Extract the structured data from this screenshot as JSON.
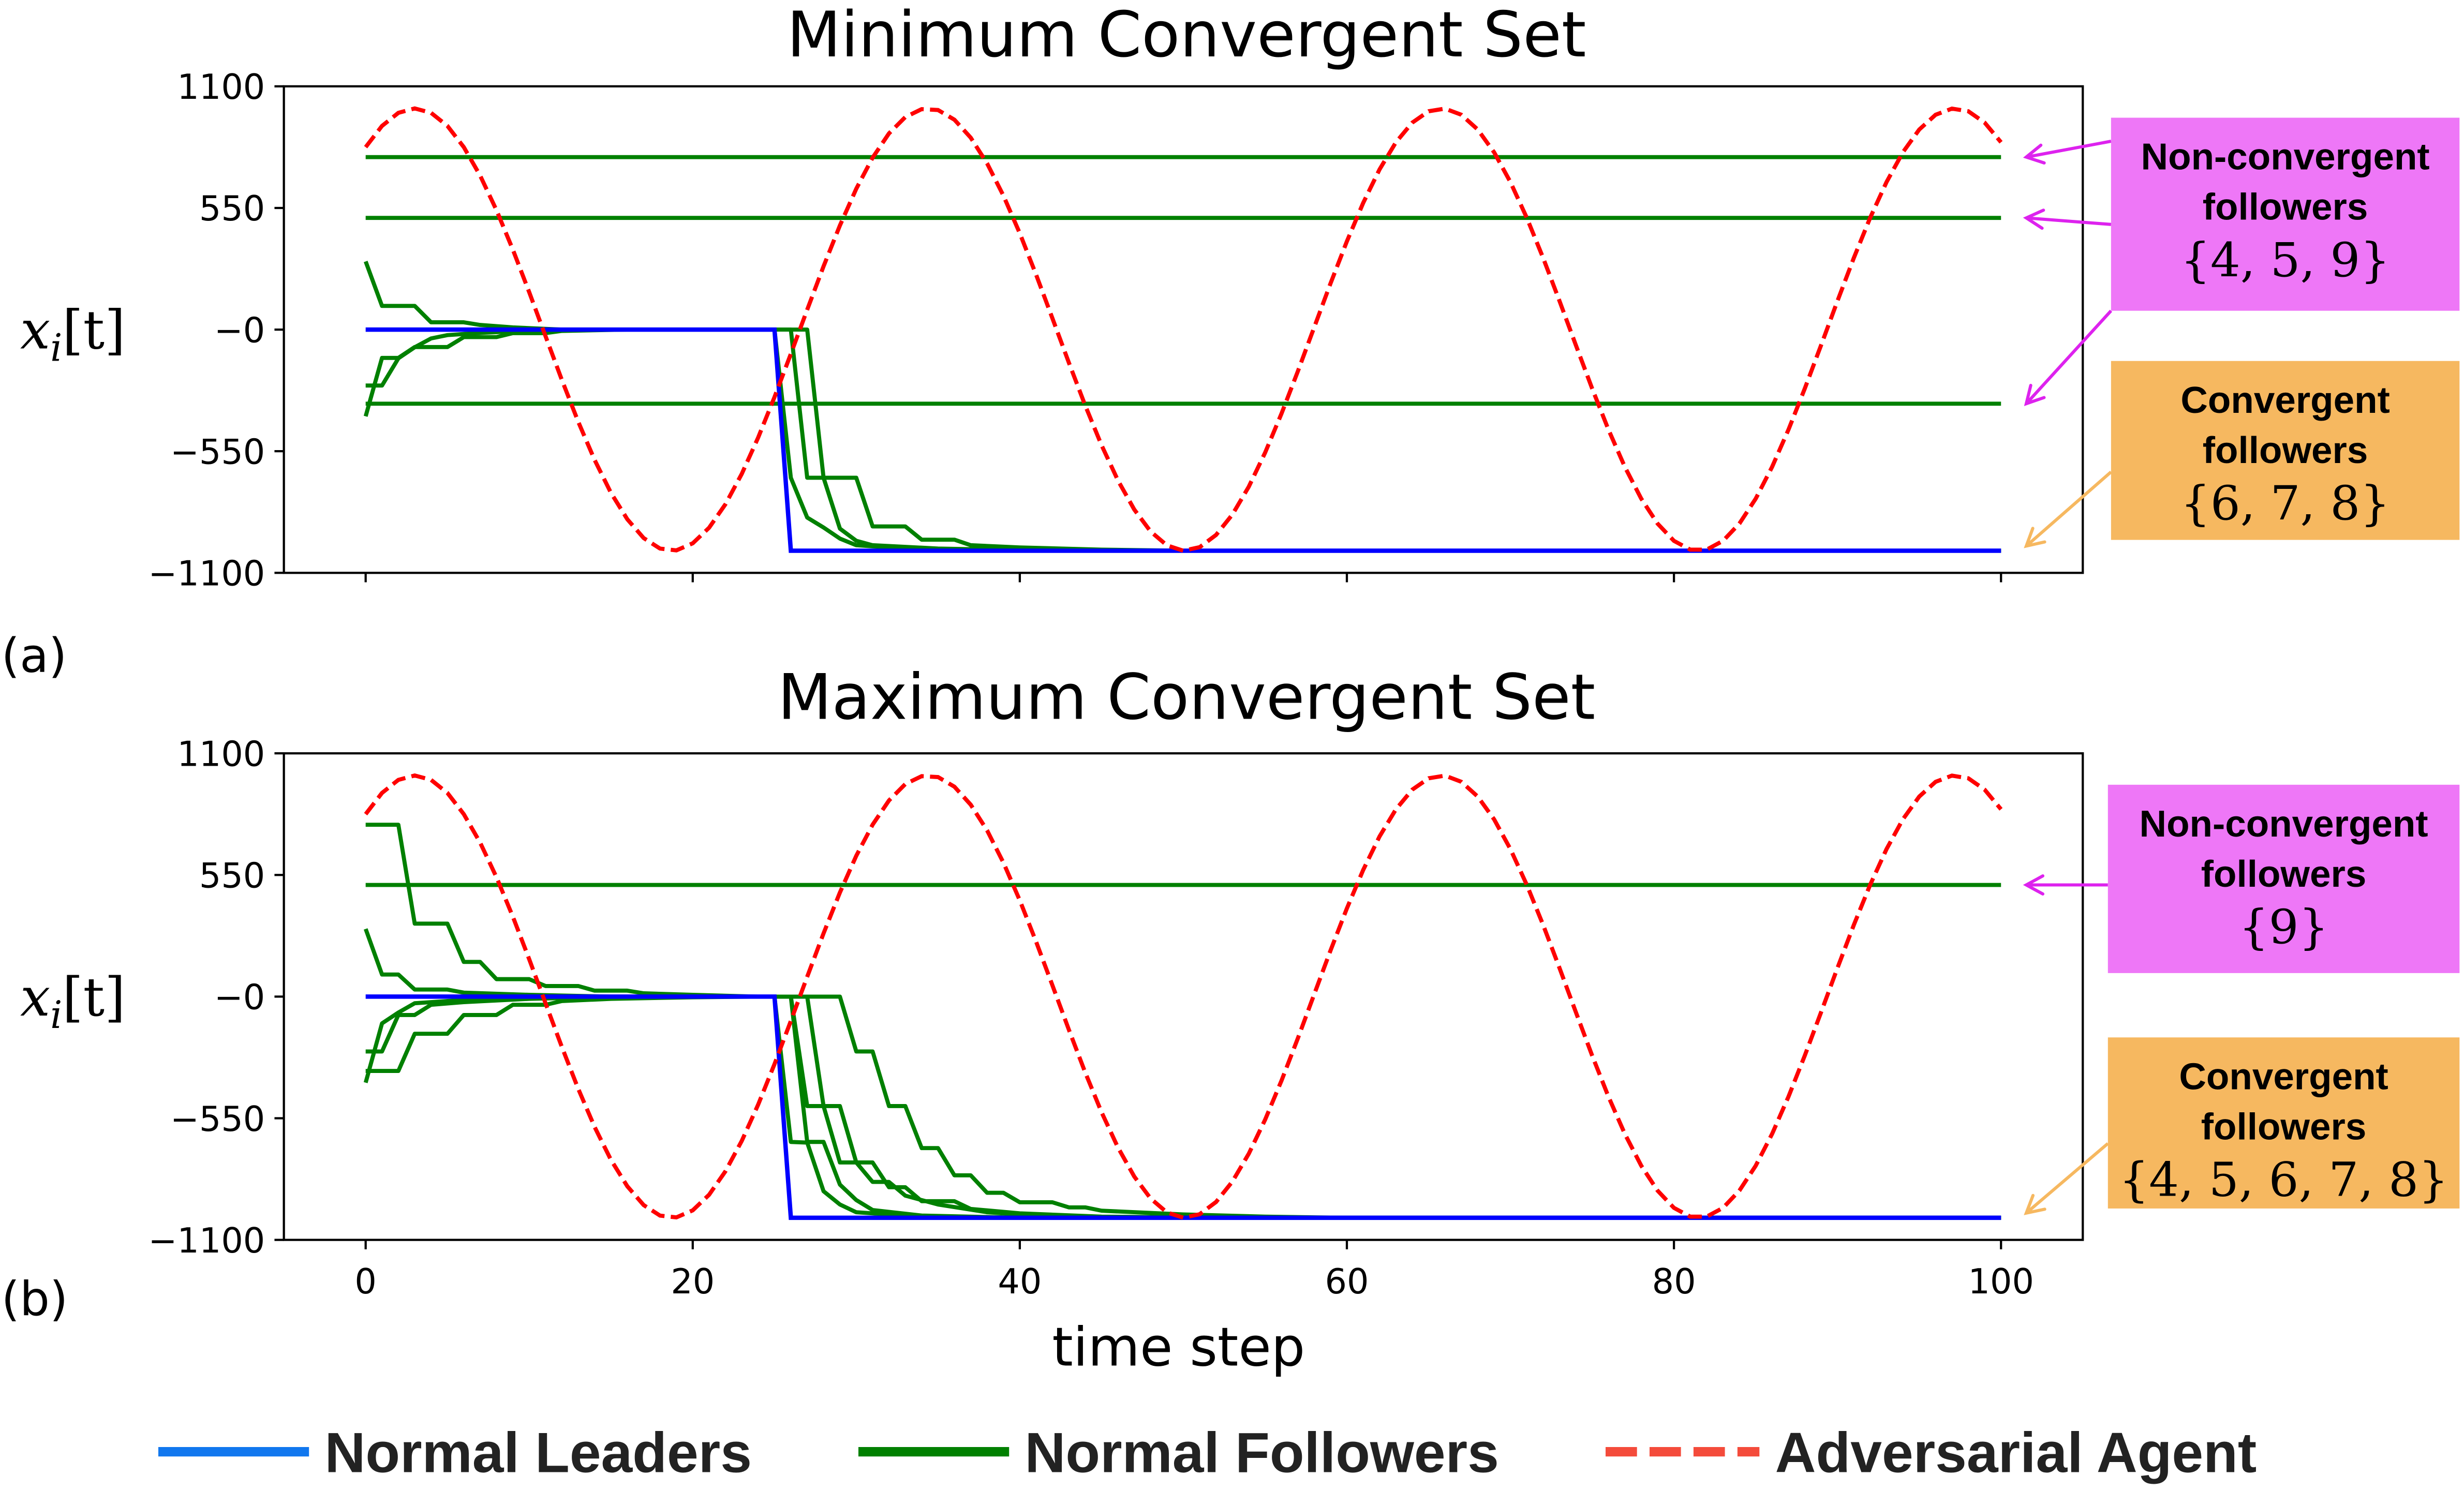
{
  "legend": {
    "leaders": {
      "label": "Normal Leaders",
      "color": "#1177ee"
    },
    "followers": {
      "label": "Normal Followers",
      "color": "#008000"
    },
    "adversary": {
      "label": "Adversarial Agent",
      "color": "#f44b3b"
    }
  },
  "colors": {
    "leader": "#0000ff",
    "follower": "#008000",
    "adversary": "#ff0000",
    "nonconv_box": "#ee77f7",
    "nonconv_arrow": "#dd22ee",
    "conv_box": "#f6b860",
    "conv_arrow": "#f6b860"
  },
  "chart_data": [
    {
      "type": "line",
      "panel_label": "(a)",
      "title": "Minimum Convergent Set",
      "ylabel": "x_i[t]",
      "ylabel_main": "x",
      "ylabel_sub": "i",
      "ylabel_rest": "[t]",
      "xlabel": "",
      "xlim": [
        -5,
        105
      ],
      "ylim": [
        -1100,
        1100
      ],
      "yticks": [
        1100,
        550,
        0,
        -550,
        -1100
      ],
      "ytick_labels": [
        "1100",
        "550",
        "−0",
        "−550",
        "−1100"
      ],
      "xticks": [
        0,
        20,
        40,
        60,
        80,
        100
      ],
      "xtick_labels": [],
      "adversary": {
        "name": "Adversarial Agent",
        "amplitude": 1000,
        "period": 31.4,
        "first_peak_t": 3
      },
      "leaders": [
        {
          "name": "leader",
          "points": [
            [
              0,
              0
            ],
            [
              25,
              0
            ],
            [
              26,
              -1000
            ],
            [
              100,
              -1000
            ]
          ]
        }
      ],
      "followers": [
        {
          "name": "follower-nonconv-1",
          "points": [
            [
              0,
              780
            ],
            [
              100,
              780
            ]
          ]
        },
        {
          "name": "follower-nonconv-2",
          "points": [
            [
              0,
              505
            ],
            [
              100,
              505
            ]
          ]
        },
        {
          "name": "follower-nonconv-3",
          "points": [
            [
              0,
              -335
            ],
            [
              100,
              -335
            ]
          ]
        },
        {
          "name": "follower-conv-1",
          "points": [
            [
              0,
              308
            ],
            [
              1,
              107
            ],
            [
              3,
              107
            ],
            [
              4,
              33
            ],
            [
              6,
              33
            ],
            [
              7,
              21
            ],
            [
              9,
              10
            ],
            [
              12,
              0
            ],
            [
              25,
              0
            ],
            [
              26,
              -670
            ],
            [
              27,
              -850
            ],
            [
              28,
              -895
            ],
            [
              29,
              -945
            ],
            [
              30,
              -975
            ],
            [
              33,
              -990
            ],
            [
              40,
              -1000
            ],
            [
              100,
              -1000
            ]
          ]
        },
        {
          "name": "follower-conv-2",
          "points": [
            [
              0,
              -392
            ],
            [
              1,
              -128
            ],
            [
              2,
              -128
            ],
            [
              3,
              -79
            ],
            [
              5,
              -79
            ],
            [
              6,
              -34
            ],
            [
              8,
              -34
            ],
            [
              9,
              -16
            ],
            [
              11,
              -16
            ],
            [
              12,
              -6
            ],
            [
              16,
              0
            ],
            [
              26,
              0
            ],
            [
              27,
              -670
            ],
            [
              28,
              -670
            ],
            [
              29,
              -900
            ],
            [
              30,
              -955
            ],
            [
              31,
              -975
            ],
            [
              35,
              -990
            ],
            [
              42,
              -1000
            ],
            [
              100,
              -1000
            ]
          ]
        },
        {
          "name": "follower-conv-3",
          "points": [
            [
              0,
              -253
            ],
            [
              1,
              -253
            ],
            [
              2,
              -130
            ],
            [
              3,
              -80
            ],
            [
              4,
              -40
            ],
            [
              5,
              -25
            ],
            [
              7,
              -15
            ],
            [
              10,
              -5
            ],
            [
              14,
              0
            ],
            [
              27,
              0
            ],
            [
              28,
              -670
            ],
            [
              30,
              -670
            ],
            [
              31,
              -890
            ],
            [
              33,
              -890
            ],
            [
              34,
              -950
            ],
            [
              36,
              -950
            ],
            [
              37,
              -975
            ],
            [
              40,
              -985
            ],
            [
              45,
              -995
            ],
            [
              50,
              -1000
            ],
            [
              100,
              -1000
            ]
          ]
        }
      ],
      "annotations": [
        {
          "kind": "nonconv",
          "title_line1": "Non-convergent",
          "title_line2": "followers",
          "set": "{4, 5, 9}",
          "targets": [
            780,
            505,
            -335
          ]
        },
        {
          "kind": "conv",
          "title_line1": "Convergent",
          "title_line2": "followers",
          "set": "{6, 7, 8}",
          "targets": [
            -1000
          ]
        }
      ]
    },
    {
      "type": "line",
      "panel_label": "(b)",
      "title": "Maximum Convergent Set",
      "ylabel": "x_i[t]",
      "ylabel_main": "x",
      "ylabel_sub": "i",
      "ylabel_rest": "[t]",
      "xlabel": "time step",
      "xlim": [
        -5,
        105
      ],
      "ylim": [
        -1100,
        1100
      ],
      "yticks": [
        1100,
        550,
        0,
        -550,
        -1100
      ],
      "ytick_labels": [
        "1100",
        "550",
        "−0",
        "−550",
        "−1100"
      ],
      "xticks": [
        0,
        20,
        40,
        60,
        80,
        100
      ],
      "xtick_labels": [
        "0",
        "20",
        "40",
        "60",
        "80",
        "100"
      ],
      "adversary": {
        "name": "Adversarial Agent",
        "amplitude": 1000,
        "period": 31.4,
        "first_peak_t": 3
      },
      "leaders": [
        {
          "name": "leader",
          "points": [
            [
              0,
              0
            ],
            [
              25,
              0
            ],
            [
              26,
              -1000
            ],
            [
              100,
              -1000
            ]
          ]
        }
      ],
      "followers": [
        {
          "name": "follower-nonconv-1",
          "points": [
            [
              0,
              505
            ],
            [
              100,
              505
            ]
          ]
        },
        {
          "name": "follower-conv-1",
          "points": [
            [
              0,
              777
            ],
            [
              2,
              777
            ],
            [
              3,
              330
            ],
            [
              5,
              330
            ],
            [
              6,
              157
            ],
            [
              7,
              157
            ],
            [
              8,
              79
            ],
            [
              10,
              79
            ],
            [
              11,
              48
            ],
            [
              13,
              48
            ],
            [
              14,
              27
            ],
            [
              16,
              27
            ],
            [
              17,
              15
            ],
            [
              20,
              8
            ],
            [
              24,
              0
            ],
            [
              26,
              0
            ],
            [
              27,
              -495
            ],
            [
              28,
              -495
            ],
            [
              29,
              -750
            ],
            [
              31,
              -750
            ],
            [
              32,
              -862
            ],
            [
              33,
              -862
            ],
            [
              34,
              -925
            ],
            [
              36,
              -925
            ],
            [
              37,
              -960
            ],
            [
              40,
              -980
            ],
            [
              45,
              -995
            ],
            [
              55,
              -1000
            ],
            [
              100,
              -1000
            ]
          ]
        },
        {
          "name": "follower-conv-2",
          "points": [
            [
              0,
              306
            ],
            [
              1,
              100
            ],
            [
              2,
              100
            ],
            [
              3,
              32
            ],
            [
              5,
              32
            ],
            [
              6,
              18
            ],
            [
              10,
              8
            ],
            [
              15,
              0
            ],
            [
              26,
              0
            ],
            [
              27,
              -657
            ],
            [
              28,
              -657
            ],
            [
              29,
              -850
            ],
            [
              30,
              -920
            ],
            [
              31,
              -965
            ],
            [
              34,
              -990
            ],
            [
              40,
              -1000
            ],
            [
              100,
              -1000
            ]
          ]
        },
        {
          "name": "follower-conv-3",
          "points": [
            [
              0,
              -389
            ],
            [
              1,
              -121
            ],
            [
              2,
              -72
            ],
            [
              3,
              -30
            ],
            [
              5,
              -20
            ],
            [
              8,
              -8
            ],
            [
              14,
              0
            ],
            [
              25,
              0
            ],
            [
              26,
              -657
            ],
            [
              27,
              -660
            ],
            [
              28,
              -880
            ],
            [
              29,
              -940
            ],
            [
              30,
              -975
            ],
            [
              33,
              -990
            ],
            [
              38,
              -1000
            ],
            [
              100,
              -1000
            ]
          ]
        },
        {
          "name": "follower-conv-4",
          "points": [
            [
              0,
              -248
            ],
            [
              1,
              -248
            ],
            [
              2,
              -83
            ],
            [
              3,
              -83
            ],
            [
              4,
              -37
            ],
            [
              6,
              -25
            ],
            [
              10,
              -10
            ],
            [
              16,
              0
            ],
            [
              27,
              0
            ],
            [
              28,
              -495
            ],
            [
              29,
              -495
            ],
            [
              30,
              -750
            ],
            [
              31,
              -838
            ],
            [
              32,
              -838
            ],
            [
              33,
              -900
            ],
            [
              35,
              -940
            ],
            [
              38,
              -975
            ],
            [
              42,
              -995
            ],
            [
              50,
              -1000
            ],
            [
              100,
              -1000
            ]
          ]
        },
        {
          "name": "follower-conv-5",
          "points": [
            [
              0,
              -336
            ],
            [
              2,
              -336
            ],
            [
              3,
              -168
            ],
            [
              5,
              -168
            ],
            [
              6,
              -83
            ],
            [
              8,
              -83
            ],
            [
              9,
              -37
            ],
            [
              11,
              -37
            ],
            [
              12,
              -20
            ],
            [
              15,
              -10
            ],
            [
              20,
              -3
            ],
            [
              24,
              0
            ],
            [
              29,
              0
            ],
            [
              30,
              -248
            ],
            [
              31,
              -248
            ],
            [
              32,
              -495
            ],
            [
              33,
              -495
            ],
            [
              34,
              -685
            ],
            [
              35,
              -685
            ],
            [
              36,
              -808
            ],
            [
              37,
              -808
            ],
            [
              38,
              -887
            ],
            [
              39,
              -887
            ],
            [
              40,
              -930
            ],
            [
              42,
              -930
            ],
            [
              43,
              -953
            ],
            [
              44,
              -953
            ],
            [
              45,
              -968
            ],
            [
              50,
              -985
            ],
            [
              55,
              -995
            ],
            [
              60,
              -1000
            ],
            [
              100,
              -1000
            ]
          ]
        }
      ],
      "annotations": [
        {
          "kind": "nonconv",
          "title_line1": "Non-convergent",
          "title_line2": "followers",
          "set": "{9}",
          "targets": [
            505
          ]
        },
        {
          "kind": "conv",
          "title_line1": "Convergent",
          "title_line2": "followers",
          "set": "{4, 5, 6, 7, 8}",
          "targets": [
            -1000
          ]
        }
      ]
    }
  ]
}
